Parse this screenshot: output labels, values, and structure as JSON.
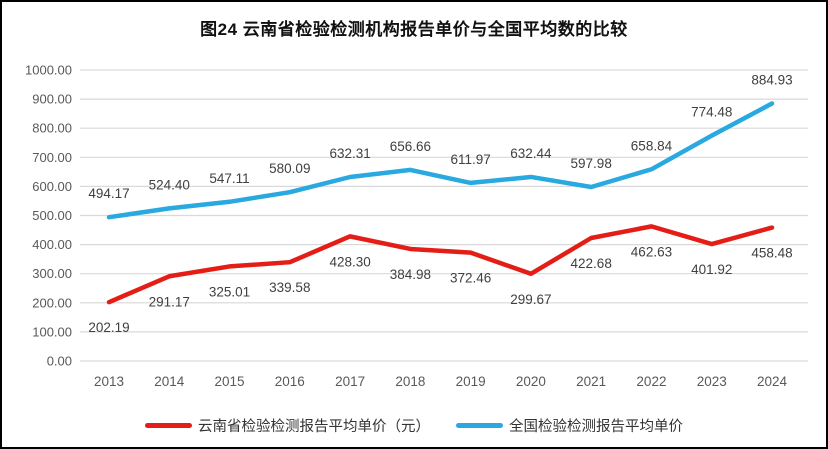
{
  "chart_data": {
    "type": "line",
    "title": "图24 云南省检验检测机构报告单价与全国平均数的比较",
    "categories": [
      "2013",
      "2014",
      "2015",
      "2016",
      "2017",
      "2018",
      "2019",
      "2020",
      "2021",
      "2022",
      "2023",
      "2024"
    ],
    "series": [
      {
        "name": "云南省检验检测报告平均单价（元）",
        "color": "#e41d17",
        "label_position": "below",
        "values": [
          202.19,
          291.17,
          325.01,
          339.58,
          428.3,
          384.98,
          372.46,
          299.67,
          422.68,
          462.63,
          401.92,
          458.48
        ]
      },
      {
        "name": "全国检验检测报告平均单价",
        "color": "#29a9e0",
        "label_position": "above",
        "values": [
          494.17,
          524.4,
          547.11,
          580.09,
          632.31,
          656.66,
          611.97,
          632.44,
          597.98,
          658.84,
          774.48,
          884.93
        ]
      }
    ],
    "y_ticks": [
      "1000.00",
      "900.00",
      "800.00",
      "700.00",
      "600.00",
      "500.00",
      "400.00",
      "300.00",
      "200.00",
      "100.00",
      "0.00"
    ],
    "ylim": [
      0,
      1000
    ],
    "xlabel": "",
    "ylabel": "",
    "grid": true,
    "legend_position": "bottom",
    "grid_color": "#d9d9d9",
    "axis_text_color": "#595959",
    "data_label_color": "#404040"
  }
}
